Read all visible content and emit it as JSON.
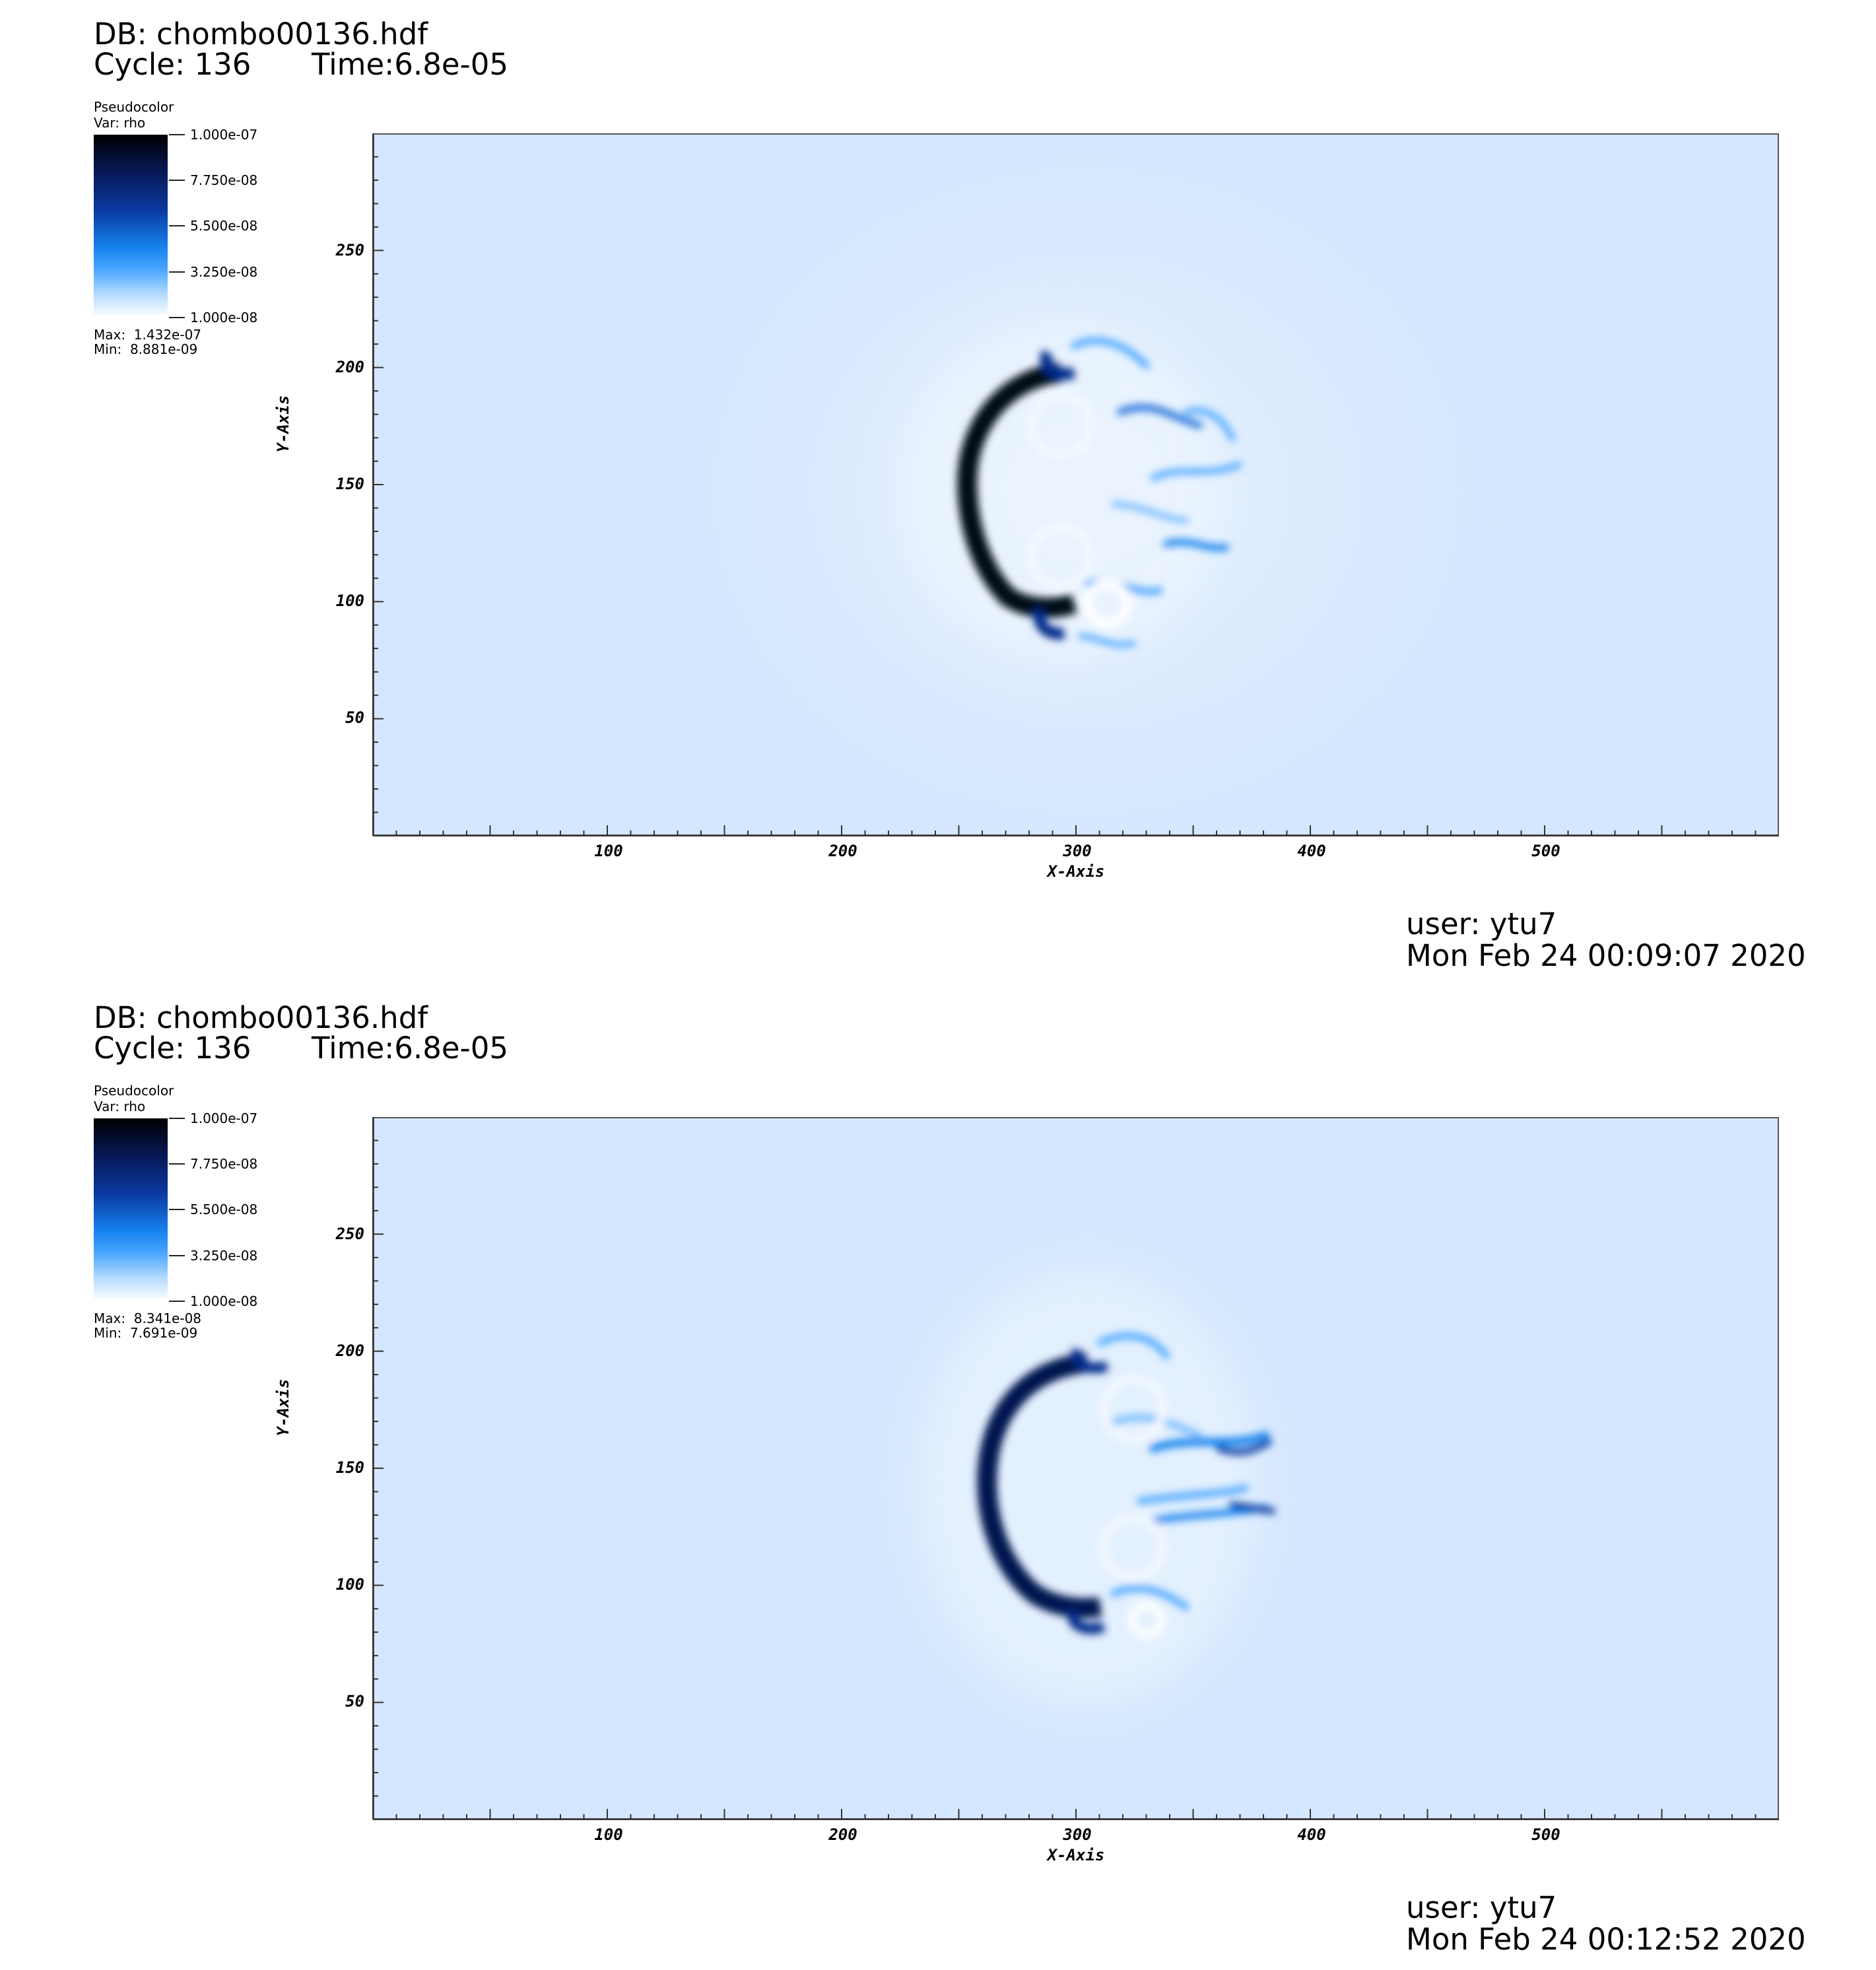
{
  "chart_data": [
    {
      "type": "heatmap",
      "header": {
        "db": "DB: chombo00136.hdf",
        "cycle": "Cycle: 136",
        "time": "Time:6.8e-05"
      },
      "legend": {
        "title": "Pseudocolor",
        "var": "Var: rho",
        "ticks": [
          "1.000e-07",
          "7.750e-08",
          "5.500e-08",
          "3.250e-08",
          "1.000e-08"
        ],
        "tick_values": [
          1e-07,
          7.75e-08,
          5.5e-08,
          3.25e-08,
          1e-08
        ],
        "max": "Max:  1.432e-07",
        "min": "Min:  8.881e-09"
      },
      "xlabel": "X-Axis",
      "ylabel": "Y-Axis",
      "xticks": [
        "100",
        "200",
        "300",
        "400",
        "500"
      ],
      "yticks": [
        "50",
        "100",
        "150",
        "200",
        "250"
      ],
      "xlim": [
        0,
        600
      ],
      "ylim": [
        0,
        300
      ],
      "colormap": [
        "#000000",
        "#06154e",
        "#0b3aa3",
        "#1683ee",
        "#4aa6ff",
        "#b8dcff",
        "#ffffff"
      ],
      "background_color": "#d5e7fe",
      "footer": {
        "user": "user: ytu7",
        "date": "Mon Feb 24 00:09:07 2020"
      }
    },
    {
      "type": "heatmap",
      "header": {
        "db": "DB: chombo00136.hdf",
        "cycle": "Cycle: 136",
        "time": "Time:6.8e-05"
      },
      "legend": {
        "title": "Pseudocolor",
        "var": "Var: rho",
        "ticks": [
          "1.000e-07",
          "7.750e-08",
          "5.500e-08",
          "3.250e-08",
          "1.000e-08"
        ],
        "tick_values": [
          1e-07,
          7.75e-08,
          5.5e-08,
          3.25e-08,
          1e-08
        ],
        "max": "Max:  8.341e-08",
        "min": "Min:  7.691e-09"
      },
      "xlabel": "X-Axis",
      "ylabel": "Y-Axis",
      "xticks": [
        "100",
        "200",
        "300",
        "400",
        "500"
      ],
      "yticks": [
        "50",
        "100",
        "150",
        "200",
        "250"
      ],
      "xlim": [
        0,
        600
      ],
      "ylim": [
        0,
        300
      ],
      "colormap": [
        "#000000",
        "#06154e",
        "#0b3aa3",
        "#1683ee",
        "#4aa6ff",
        "#b8dcff",
        "#ffffff"
      ],
      "background_color": "#d5e7fe",
      "footer": {
        "user": "user: ytu7",
        "date": "Mon Feb 24 00:12:52 2020"
      }
    }
  ]
}
